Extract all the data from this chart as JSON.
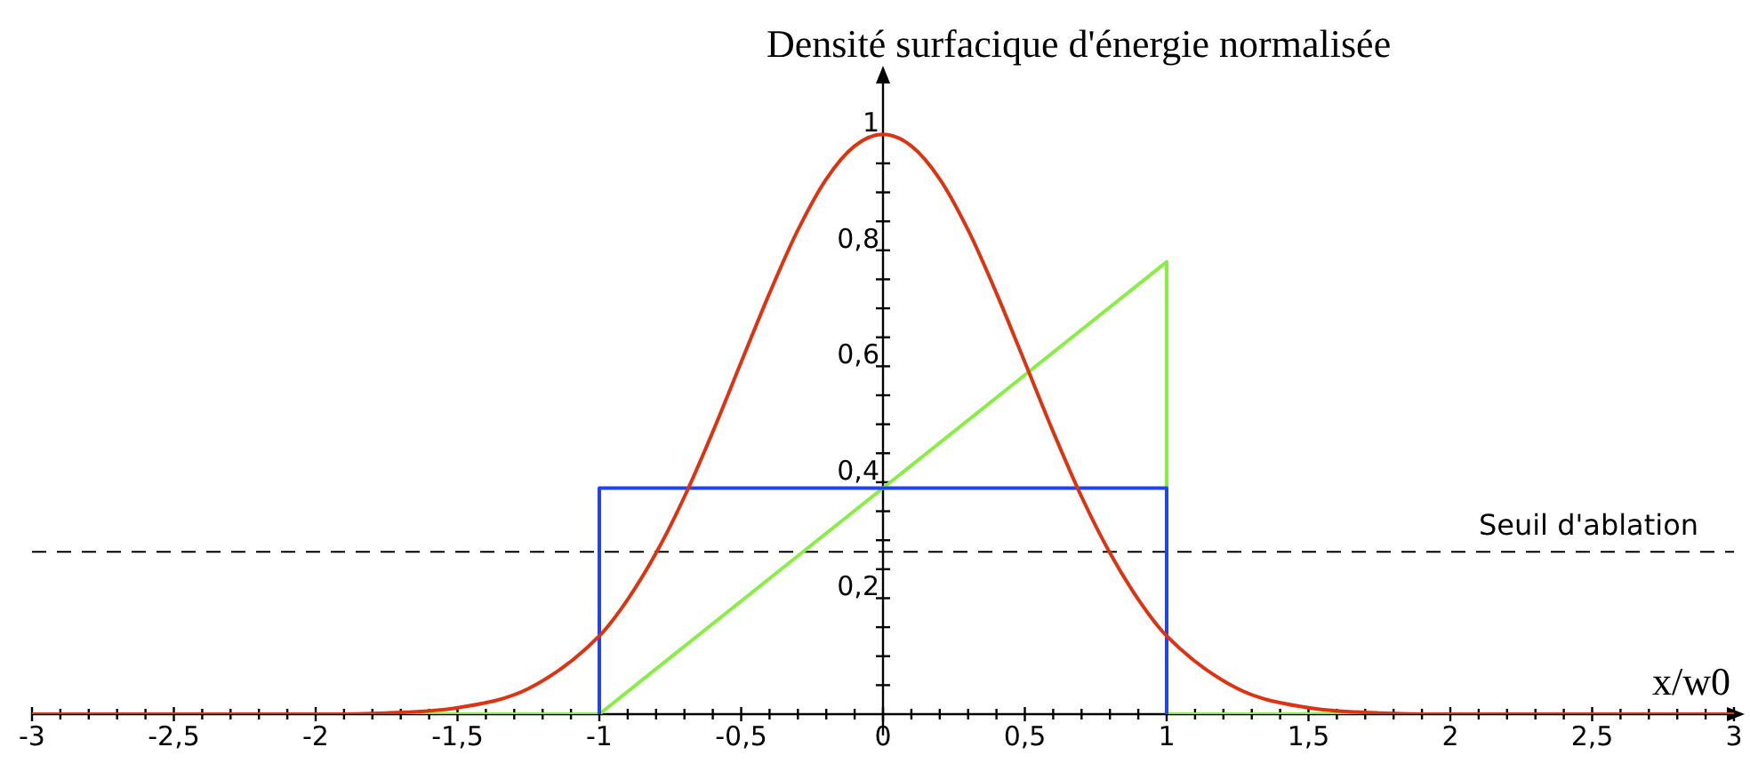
{
  "chart_data": {
    "type": "line",
    "ylabel": "Densité surfacique d'énergie normalisée",
    "xlabel": "x/w0",
    "xlim": [
      -3,
      3
    ],
    "ylim": [
      0,
      1.1
    ],
    "xticks": [
      {
        "value": -3,
        "label": "-3"
      },
      {
        "value": -2.9,
        "label": null
      },
      {
        "value": -2.8,
        "label": null
      },
      {
        "value": -2.7,
        "label": null
      },
      {
        "value": -2.6,
        "label": null
      },
      {
        "value": -2.5,
        "label": "-2,5"
      },
      {
        "value": -2.4,
        "label": null
      },
      {
        "value": -2.3,
        "label": null
      },
      {
        "value": -2.2,
        "label": null
      },
      {
        "value": -2.1,
        "label": null
      },
      {
        "value": -2,
        "label": "-2"
      },
      {
        "value": -1.9,
        "label": null
      },
      {
        "value": -1.8,
        "label": null
      },
      {
        "value": -1.7,
        "label": null
      },
      {
        "value": -1.6,
        "label": null
      },
      {
        "value": -1.5,
        "label": "-1,5"
      },
      {
        "value": -1.4,
        "label": null
      },
      {
        "value": -1.3,
        "label": null
      },
      {
        "value": -1.2,
        "label": null
      },
      {
        "value": -1.1,
        "label": null
      },
      {
        "value": -1,
        "label": "-1"
      },
      {
        "value": -0.9,
        "label": null
      },
      {
        "value": -0.8,
        "label": null
      },
      {
        "value": -0.7,
        "label": null
      },
      {
        "value": -0.6,
        "label": null
      },
      {
        "value": -0.5,
        "label": "-0,5"
      },
      {
        "value": -0.4,
        "label": null
      },
      {
        "value": -0.3,
        "label": null
      },
      {
        "value": -0.2,
        "label": null
      },
      {
        "value": -0.1,
        "label": null
      },
      {
        "value": 0,
        "label": "0"
      },
      {
        "value": 0.1,
        "label": null
      },
      {
        "value": 0.2,
        "label": null
      },
      {
        "value": 0.3,
        "label": null
      },
      {
        "value": 0.4,
        "label": null
      },
      {
        "value": 0.5,
        "label": "0,5"
      },
      {
        "value": 0.6,
        "label": null
      },
      {
        "value": 0.7,
        "label": null
      },
      {
        "value": 0.8,
        "label": null
      },
      {
        "value": 0.9,
        "label": null
      },
      {
        "value": 1,
        "label": "1"
      },
      {
        "value": 1.1,
        "label": null
      },
      {
        "value": 1.2,
        "label": null
      },
      {
        "value": 1.3,
        "label": null
      },
      {
        "value": 1.4,
        "label": null
      },
      {
        "value": 1.5,
        "label": "1,5"
      },
      {
        "value": 1.6,
        "label": null
      },
      {
        "value": 1.7,
        "label": null
      },
      {
        "value": 1.8,
        "label": null
      },
      {
        "value": 1.9,
        "label": null
      },
      {
        "value": 2,
        "label": "2"
      },
      {
        "value": 2.1,
        "label": null
      },
      {
        "value": 2.2,
        "label": null
      },
      {
        "value": 2.3,
        "label": null
      },
      {
        "value": 2.4,
        "label": null
      },
      {
        "value": 2.5,
        "label": "2,5"
      },
      {
        "value": 2.6,
        "label": null
      },
      {
        "value": 2.7,
        "label": null
      },
      {
        "value": 2.8,
        "label": null
      },
      {
        "value": 2.9,
        "label": null
      },
      {
        "value": 3,
        "label": "3"
      }
    ],
    "yticks": [
      {
        "value": 0.05,
        "label": null
      },
      {
        "value": 0.1,
        "label": null
      },
      {
        "value": 0.15,
        "label": null
      },
      {
        "value": 0.2,
        "label": "0,2"
      },
      {
        "value": 0.25,
        "label": null
      },
      {
        "value": 0.3,
        "label": null
      },
      {
        "value": 0.35,
        "label": null
      },
      {
        "value": 0.4,
        "label": "0,4"
      },
      {
        "value": 0.45,
        "label": null
      },
      {
        "value": 0.5,
        "label": null
      },
      {
        "value": 0.55,
        "label": null
      },
      {
        "value": 0.6,
        "label": "0,6"
      },
      {
        "value": 0.65,
        "label": null
      },
      {
        "value": 0.7,
        "label": null
      },
      {
        "value": 0.75,
        "label": null
      },
      {
        "value": 0.8,
        "label": "0,8"
      },
      {
        "value": 0.85,
        "label": null
      },
      {
        "value": 0.9,
        "label": null
      },
      {
        "value": 0.95,
        "label": null
      },
      1
    ],
    "grid": false,
    "legend": false,
    "marker": "none",
    "line_style": "solid",
    "series": [
      {
        "color": "#dd3311",
        "x": [
          -3,
          -2.5,
          -2,
          -1.75,
          -1.5,
          -1.25,
          -1,
          -0.9,
          -0.8,
          -0.7,
          -0.6,
          -0.5,
          -0.4,
          -0.3,
          -0.2,
          -0.1,
          0,
          0.1,
          0.2,
          0.3,
          0.4,
          0.5,
          0.6,
          0.7,
          0.8,
          0.9,
          1,
          1.25,
          1.5,
          1.75,
          2,
          2.5,
          3
        ],
        "values": [
          0,
          0,
          0,
          0.002,
          0.011,
          0.044,
          0.135,
          0.198,
          0.278,
          0.375,
          0.487,
          0.607,
          0.726,
          0.835,
          0.923,
          0.98,
          1,
          0.98,
          0.923,
          0.835,
          0.726,
          0.607,
          0.487,
          0.375,
          0.278,
          0.198,
          0.135,
          0.044,
          0.011,
          0.002,
          0,
          0,
          0
        ]
      },
      {
        "color": "#2244ee",
        "x": [
          -1,
          -1,
          1,
          1
        ],
        "values": [
          0,
          0.39,
          0.39,
          0
        ]
      },
      {
        "color": "#88ee44",
        "x": [
          -3,
          -1,
          1,
          1,
          3
        ],
        "values": [
          0,
          0,
          0.78,
          0,
          0
        ]
      }
    ],
    "ref_lines": [
      {
        "axis": "y",
        "value": 0.28,
        "label": "Seuil d'ablation",
        "color": "#000000",
        "line_style": "dashed"
      }
    ]
  }
}
